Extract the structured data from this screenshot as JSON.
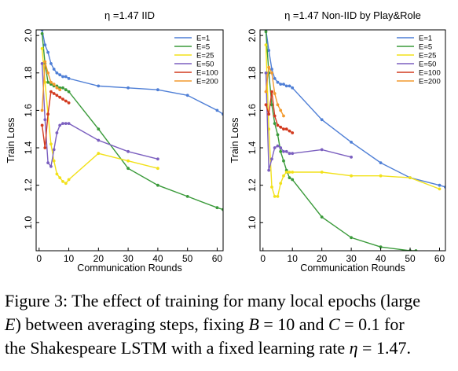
{
  "colors": {
    "E=1": "#4f7fd6",
    "E=5": "#3a9a3a",
    "E=25": "#f2e11a",
    "E=50": "#7b5fbf",
    "E=100": "#d23a1f",
    "E=200": "#f29a2e"
  },
  "chart_data": [
    {
      "type": "line",
      "title": "η =1.47 IID",
      "xlabel": "Communication Rounds",
      "ylabel": "Train Loss",
      "xlim": [
        -1,
        62
      ],
      "ylim": [
        0.85,
        2.03
      ],
      "xticks": [
        0,
        10,
        20,
        30,
        40,
        50,
        60
      ],
      "yticks": [
        1.0,
        1.2,
        1.4,
        1.6,
        1.8,
        2.0
      ],
      "ytick_labels": [
        "1.0",
        "1.2",
        "1.4",
        "1.6",
        "1.8",
        "2.0"
      ],
      "grid": false,
      "legend_position": "top-right",
      "series": [
        {
          "name": "E=1",
          "x": [
            1,
            2,
            3,
            4,
            5,
            6,
            7,
            8,
            9,
            10,
            20,
            30,
            40,
            50,
            60,
            62
          ],
          "y": [
            2.03,
            1.95,
            1.91,
            1.85,
            1.82,
            1.8,
            1.79,
            1.78,
            1.78,
            1.77,
            1.73,
            1.72,
            1.71,
            1.68,
            1.6,
            1.58
          ]
        },
        {
          "name": "E=5",
          "x": [
            1,
            2,
            3,
            4,
            5,
            6,
            7,
            8,
            9,
            10,
            20,
            30,
            40,
            50,
            60,
            62
          ],
          "y": [
            2.01,
            1.85,
            1.75,
            1.74,
            1.73,
            1.73,
            1.72,
            1.72,
            1.71,
            1.7,
            1.5,
            1.29,
            1.2,
            1.14,
            1.08,
            1.07
          ]
        },
        {
          "name": "E=25",
          "x": [
            1,
            2,
            3,
            4,
            5,
            6,
            7,
            8,
            9,
            10,
            20,
            30,
            40
          ],
          "y": [
            1.93,
            1.75,
            1.58,
            1.42,
            1.33,
            1.26,
            1.24,
            1.22,
            1.21,
            1.23,
            1.37,
            1.33,
            1.29
          ]
        },
        {
          "name": "E=50",
          "x": [
            1,
            2,
            3,
            4,
            5,
            6,
            7,
            8,
            9,
            10,
            20,
            30,
            40
          ],
          "y": [
            1.85,
            1.55,
            1.32,
            1.3,
            1.39,
            1.48,
            1.52,
            1.53,
            1.53,
            1.53,
            1.44,
            1.38,
            1.34
          ]
        },
        {
          "name": "E=100",
          "x": [
            1,
            2,
            3,
            4,
            5,
            6,
            7,
            8,
            9,
            10
          ],
          "y": [
            1.52,
            1.4,
            1.58,
            1.7,
            1.69,
            1.68,
            1.67,
            1.66,
            1.65,
            1.64
          ]
        },
        {
          "name": "E=200",
          "x": [
            1,
            2,
            3,
            4,
            5,
            6,
            7
          ],
          "y": [
            1.6,
            1.86,
            1.8,
            1.75,
            1.74,
            1.72,
            1.71
          ]
        }
      ]
    },
    {
      "type": "line",
      "title": "η =1.47 Non-IID by Play&Role",
      "xlabel": "Communication Rounds",
      "ylabel": "Train Loss",
      "xlim": [
        -1,
        62
      ],
      "ylim": [
        0.85,
        2.03
      ],
      "xticks": [
        0,
        10,
        20,
        30,
        40,
        50,
        60
      ],
      "yticks": [
        1.0,
        1.2,
        1.4,
        1.6,
        1.8,
        2.0
      ],
      "ytick_labels": [
        "1.0",
        "1.2",
        "1.4",
        "1.6",
        "1.8",
        "2.0"
      ],
      "grid": false,
      "legend_position": "top-right",
      "series": [
        {
          "name": "E=1",
          "x": [
            1,
            2,
            3,
            4,
            5,
            6,
            7,
            8,
            9,
            10,
            20,
            30,
            40,
            50,
            60,
            62
          ],
          "y": [
            2.03,
            1.92,
            1.82,
            1.77,
            1.75,
            1.74,
            1.74,
            1.73,
            1.73,
            1.72,
            1.55,
            1.43,
            1.32,
            1.24,
            1.2,
            1.19
          ]
        },
        {
          "name": "E=5",
          "x": [
            1,
            2,
            3,
            4,
            5,
            6,
            7,
            8,
            9,
            10,
            20,
            30,
            40,
            50,
            52
          ],
          "y": [
            2.02,
            1.8,
            1.63,
            1.53,
            1.47,
            1.38,
            1.33,
            1.28,
            1.24,
            1.23,
            1.03,
            0.92,
            0.87,
            0.85,
            0.85
          ]
        },
        {
          "name": "E=25",
          "x": [
            1,
            2,
            3,
            4,
            5,
            6,
            7,
            8,
            9,
            10,
            20,
            30,
            40,
            50,
            60
          ],
          "y": [
            1.95,
            1.5,
            1.19,
            1.14,
            1.14,
            1.21,
            1.25,
            1.27,
            1.27,
            1.27,
            1.27,
            1.25,
            1.25,
            1.24,
            1.18
          ]
        },
        {
          "name": "E=50",
          "x": [
            1,
            2,
            3,
            4,
            5,
            6,
            7,
            8,
            9,
            10,
            20,
            30
          ],
          "y": [
            1.8,
            1.28,
            1.34,
            1.4,
            1.41,
            1.4,
            1.38,
            1.38,
            1.37,
            1.37,
            1.39,
            1.35
          ]
        },
        {
          "name": "E=100",
          "x": [
            1,
            2,
            3,
            4,
            5,
            6,
            7,
            8,
            9,
            10
          ],
          "y": [
            1.63,
            1.58,
            1.7,
            1.57,
            1.52,
            1.51,
            1.5,
            1.5,
            1.49,
            1.48
          ]
        },
        {
          "name": "E=200",
          "x": [
            1,
            2,
            3,
            4,
            5,
            6,
            7
          ],
          "y": [
            1.7,
            1.83,
            1.8,
            1.69,
            1.63,
            1.6,
            1.57
          ]
        }
      ]
    }
  ],
  "caption": {
    "prefix": "Figure 3: The effect of training for many local epochs (large",
    "e_var": "E",
    "mid1": ") between averaging steps, fixing ",
    "b_eq": "B",
    "b_val": " = 10 and ",
    "c_eq": "C",
    "c_val": " = 0.1 for",
    "line3": "the Shakespeare LSTM with a fixed learning rate ",
    "eta": "η",
    "eta_val": " = 1.47."
  }
}
